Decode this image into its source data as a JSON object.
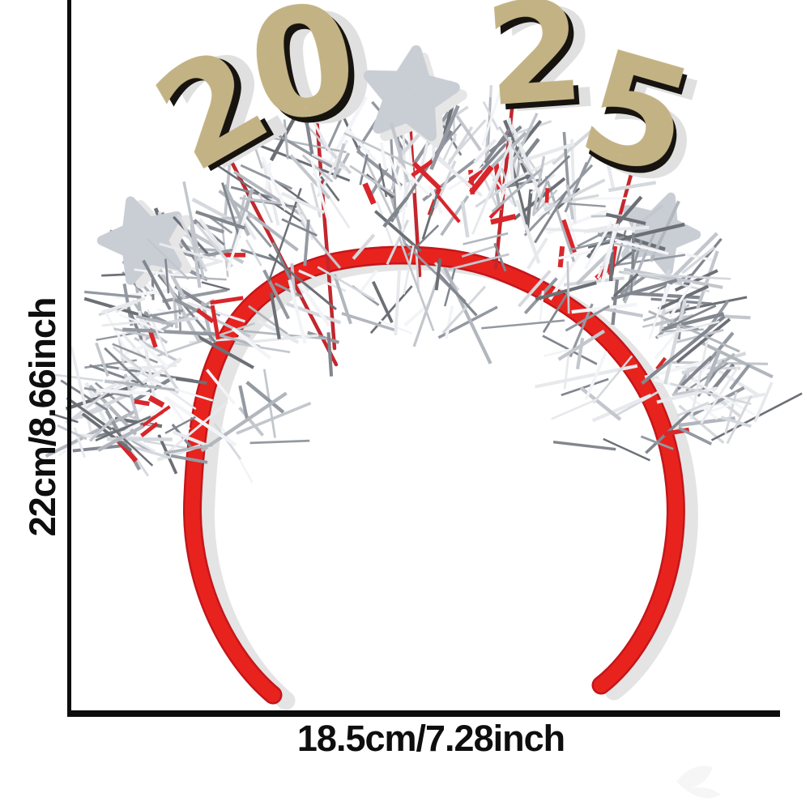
{
  "dimension_annotation": {
    "height_label": "22cm/8.66inch",
    "width_label": "18.5cm/7.28inch",
    "line_color": "#0d0d0d"
  },
  "product": {
    "year": "2025",
    "year_digits": [
      "2",
      "0",
      "2",
      "5"
    ],
    "colors": {
      "band_red": "#e8231e",
      "band_red_deep": "#c4161a",
      "stick_red": "#c2272d",
      "glitter_gold_base": "#c3b384",
      "digit_backing": "#17130e",
      "digit_shadow": "#e0e0e0",
      "band_shadow": "#e4e4e4",
      "star_silver_base": "#c9cdd4",
      "star_shadow": "#e6e6e6",
      "tinsel_red_accent": "#d8262b",
      "tinsel_palette": [
        "#f3f4f7",
        "#e7e9ed",
        "#d5d8dd",
        "#c3c7cd",
        "#b2b7be",
        "#9499a1",
        "#82868e",
        "#6c7076"
      ]
    }
  }
}
